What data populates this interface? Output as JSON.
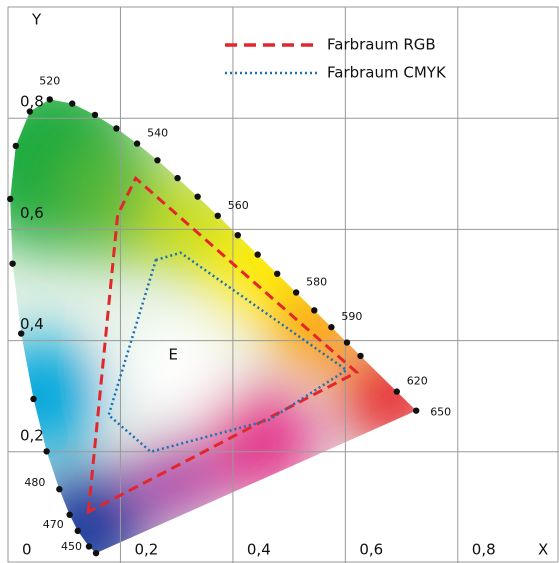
{
  "chart_data": {
    "type": "chromaticity",
    "xlabel": "X",
    "ylabel": "Y",
    "xlim": [
      0,
      0.98
    ],
    "ylim": [
      0,
      1
    ],
    "xticks": [
      0,
      {
        "value": 0.2,
        "label": "0,2"
      },
      {
        "value": 0.4,
        "label": "0,4"
      },
      {
        "value": 0.6,
        "label": "0,6"
      },
      {
        "value": 0.8,
        "label": "0,8"
      }
    ],
    "yticks": [
      {
        "value": 0.2,
        "label": "0,2"
      },
      {
        "value": 0.4,
        "label": "0,4"
      },
      {
        "value": 0.6,
        "label": "0,6"
      },
      {
        "value": 0.8,
        "label": "0,8"
      }
    ],
    "grid": true,
    "legend": "upper right",
    "locus": {
      "labels": [
        450,
        null,
        470,
        null,
        480,
        null,
        null,
        null,
        null,
        null,
        null,
        null,
        520,
        null,
        null,
        null,
        540,
        null,
        null,
        null,
        560,
        null,
        null,
        null,
        580,
        null,
        590,
        null,
        null,
        620,
        650
      ],
      "x": [
        0.1566,
        0.144,
        0.1241,
        0.1096,
        0.0913,
        0.0687,
        0.0454,
        0.0235,
        0.0082,
        0.0039,
        0.0139,
        0.0389,
        0.0743,
        0.1142,
        0.1547,
        0.1929,
        0.2296,
        0.2658,
        0.3016,
        0.3373,
        0.3731,
        0.4087,
        0.4441,
        0.4788,
        0.5125,
        0.5448,
        0.5752,
        0.6029,
        0.627,
        0.6915,
        0.726
      ],
      "y": [
        0.0177,
        0.0297,
        0.0578,
        0.0868,
        0.1327,
        0.2007,
        0.295,
        0.4127,
        0.5384,
        0.6548,
        0.7502,
        0.812,
        0.8338,
        0.8262,
        0.8059,
        0.7816,
        0.7543,
        0.7243,
        0.6923,
        0.6589,
        0.6245,
        0.5896,
        0.5547,
        0.5202,
        0.4866,
        0.4544,
        0.4242,
        0.3965,
        0.3725,
        0.3083,
        0.274
      ]
    },
    "series": [
      {
        "name": "Farbraum RGB",
        "color": "#e3262b",
        "style": "dashed",
        "x": [
          0.143,
          0.195,
          0.227,
          0.62
        ],
        "y": [
          0.092,
          0.626,
          0.692,
          0.343
        ]
      },
      {
        "name": "Farbraum CMYK",
        "color": "#1f6fb0",
        "style": "dotted",
        "x": [
          0.263,
          0.307,
          0.602,
          0.464,
          0.254,
          0.179
        ],
        "y": [
          0.545,
          0.558,
          0.347,
          0.257,
          0.2,
          0.266
        ]
      }
    ],
    "annotations": [
      {
        "text": "E",
        "x": 0.294,
        "y": 0.374
      }
    ]
  }
}
